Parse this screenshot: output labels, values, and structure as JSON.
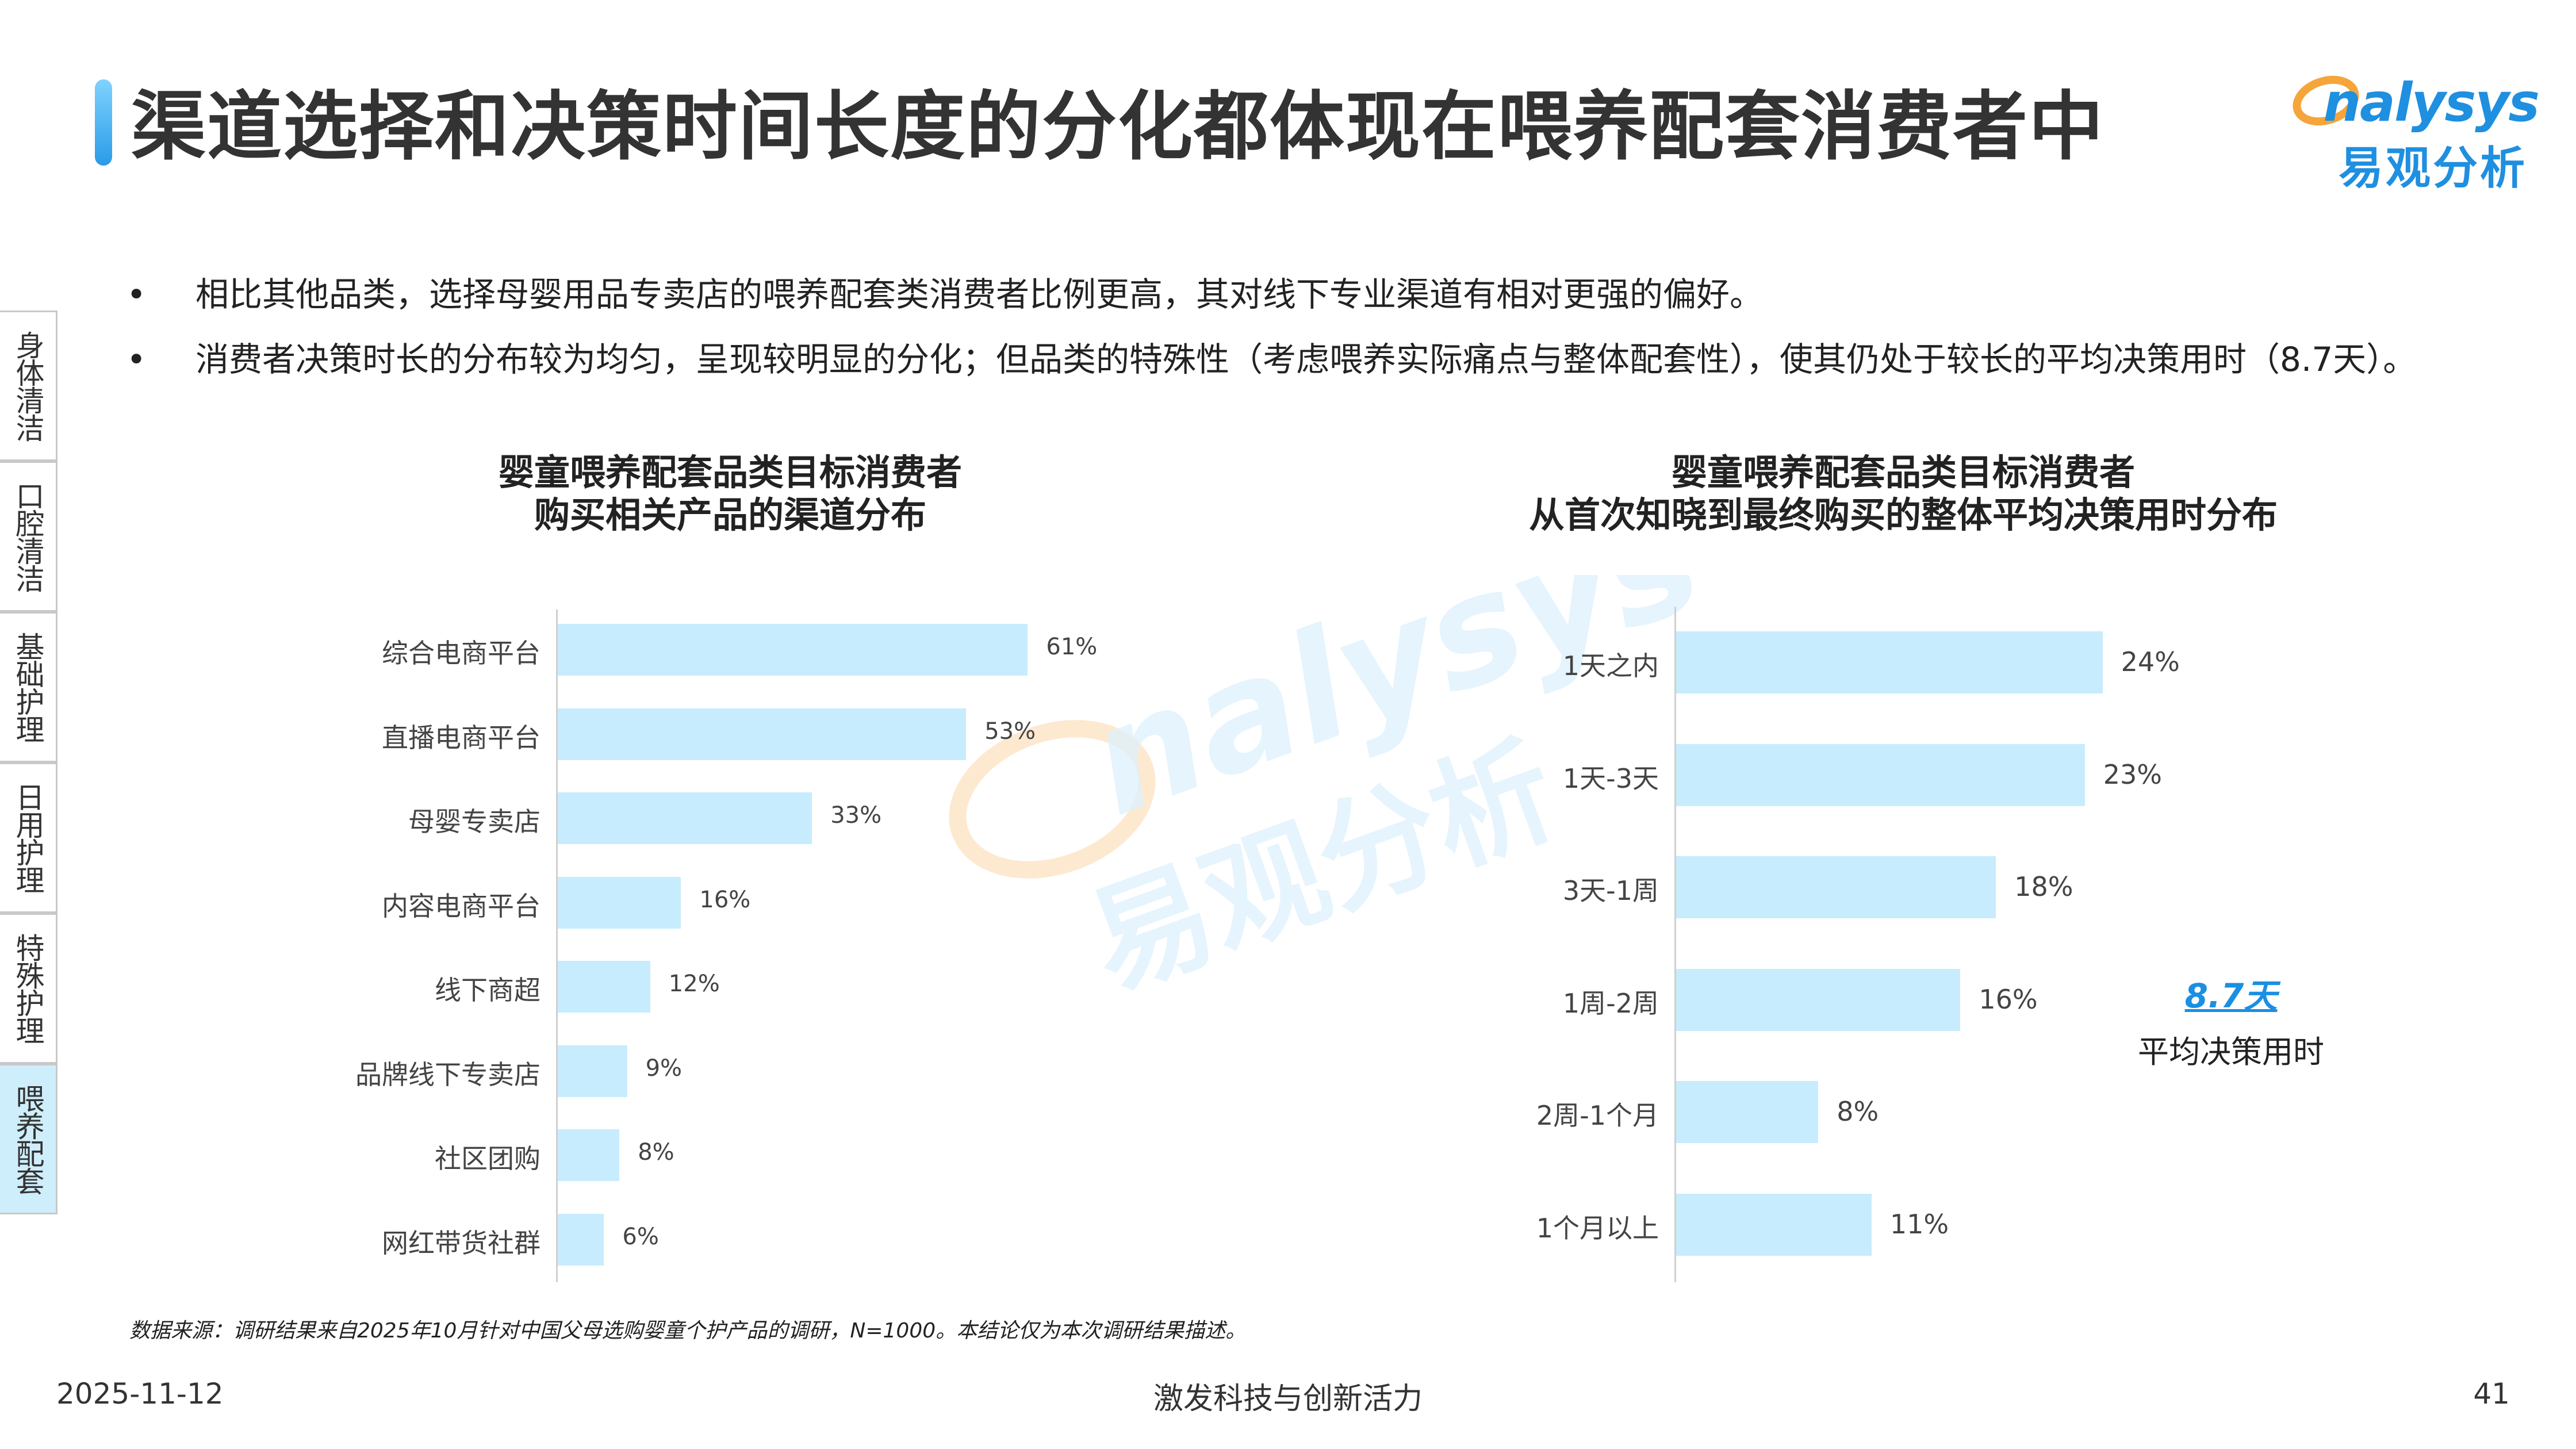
{
  "page_title": "渠道选择和决策时间长度的分化都体现在喂养配套消费者中",
  "logo": {
    "en": "nalysys",
    "cn": "易观分析"
  },
  "bullets": [
    "相比其他品类，选择母婴用品专卖店的喂养配套类消费者比例更高，其对线下专业渠道有相对更强的偏好。",
    "消费者决策时长的分布较为均匀，呈现较明显的分化；但品类的特殊性（考虑喂养实际痛点与整体配套性），使其仍处于较长的平均决策用时（8.7天）。"
  ],
  "bullet_marker": "•",
  "side_tabs": [
    {
      "label": "身体清洁",
      "active": false
    },
    {
      "label": "口腔清洁",
      "active": false
    },
    {
      "label": "基础护理",
      "active": false
    },
    {
      "label": "日用护理",
      "active": false
    },
    {
      "label": "特殊护理",
      "active": false
    },
    {
      "label": "喂养配套",
      "active": true
    }
  ],
  "colors": {
    "bar": "#c7ecfd",
    "accent": "#1a8fe3",
    "active_tab": "#cfeefc"
  },
  "chart_data": [
    {
      "type": "bar",
      "orientation": "horizontal",
      "title_lines": [
        "婴童喂养配套品类目标消费者",
        "购买相关产品的渠道分布"
      ],
      "categories": [
        "综合电商平台",
        "直播电商平台",
        "母婴专卖店",
        "内容电商平台",
        "线下商超",
        "品牌线下专卖店",
        "社区团购",
        "网红带货社群"
      ],
      "values": [
        61,
        53,
        33,
        16,
        12,
        9,
        8,
        6
      ],
      "value_labels": [
        "61%",
        "53%",
        "33%",
        "16%",
        "12%",
        "9%",
        "8%",
        "6%"
      ],
      "xlim": [
        0,
        100
      ],
      "unit": "%"
    },
    {
      "type": "bar",
      "orientation": "horizontal",
      "title_lines": [
        "婴童喂养配套品类目标消费者",
        "从首次知晓到最终购买的整体平均决策用时分布"
      ],
      "categories": [
        "1天之内",
        "1天-3天",
        "3天-1周",
        "1周-2周",
        "2周-1个月",
        "1个月以上"
      ],
      "values": [
        24,
        23,
        18,
        16,
        8,
        11
      ],
      "value_labels": [
        "24%",
        "23%",
        "18%",
        "16%",
        "8%",
        "11%"
      ],
      "xlim": [
        0,
        100
      ],
      "unit": "%",
      "annotation": {
        "value": "8.7天",
        "label": "平均决策用时"
      }
    }
  ],
  "source": "数据来源：调研结果来自2025年10月针对中国父母选购婴童个护产品的调研，N=1000。本结论仅为本次调研结果描述。",
  "footer": {
    "date": "2025-11-12",
    "center": "激发科技与创新活力",
    "page": "41"
  }
}
